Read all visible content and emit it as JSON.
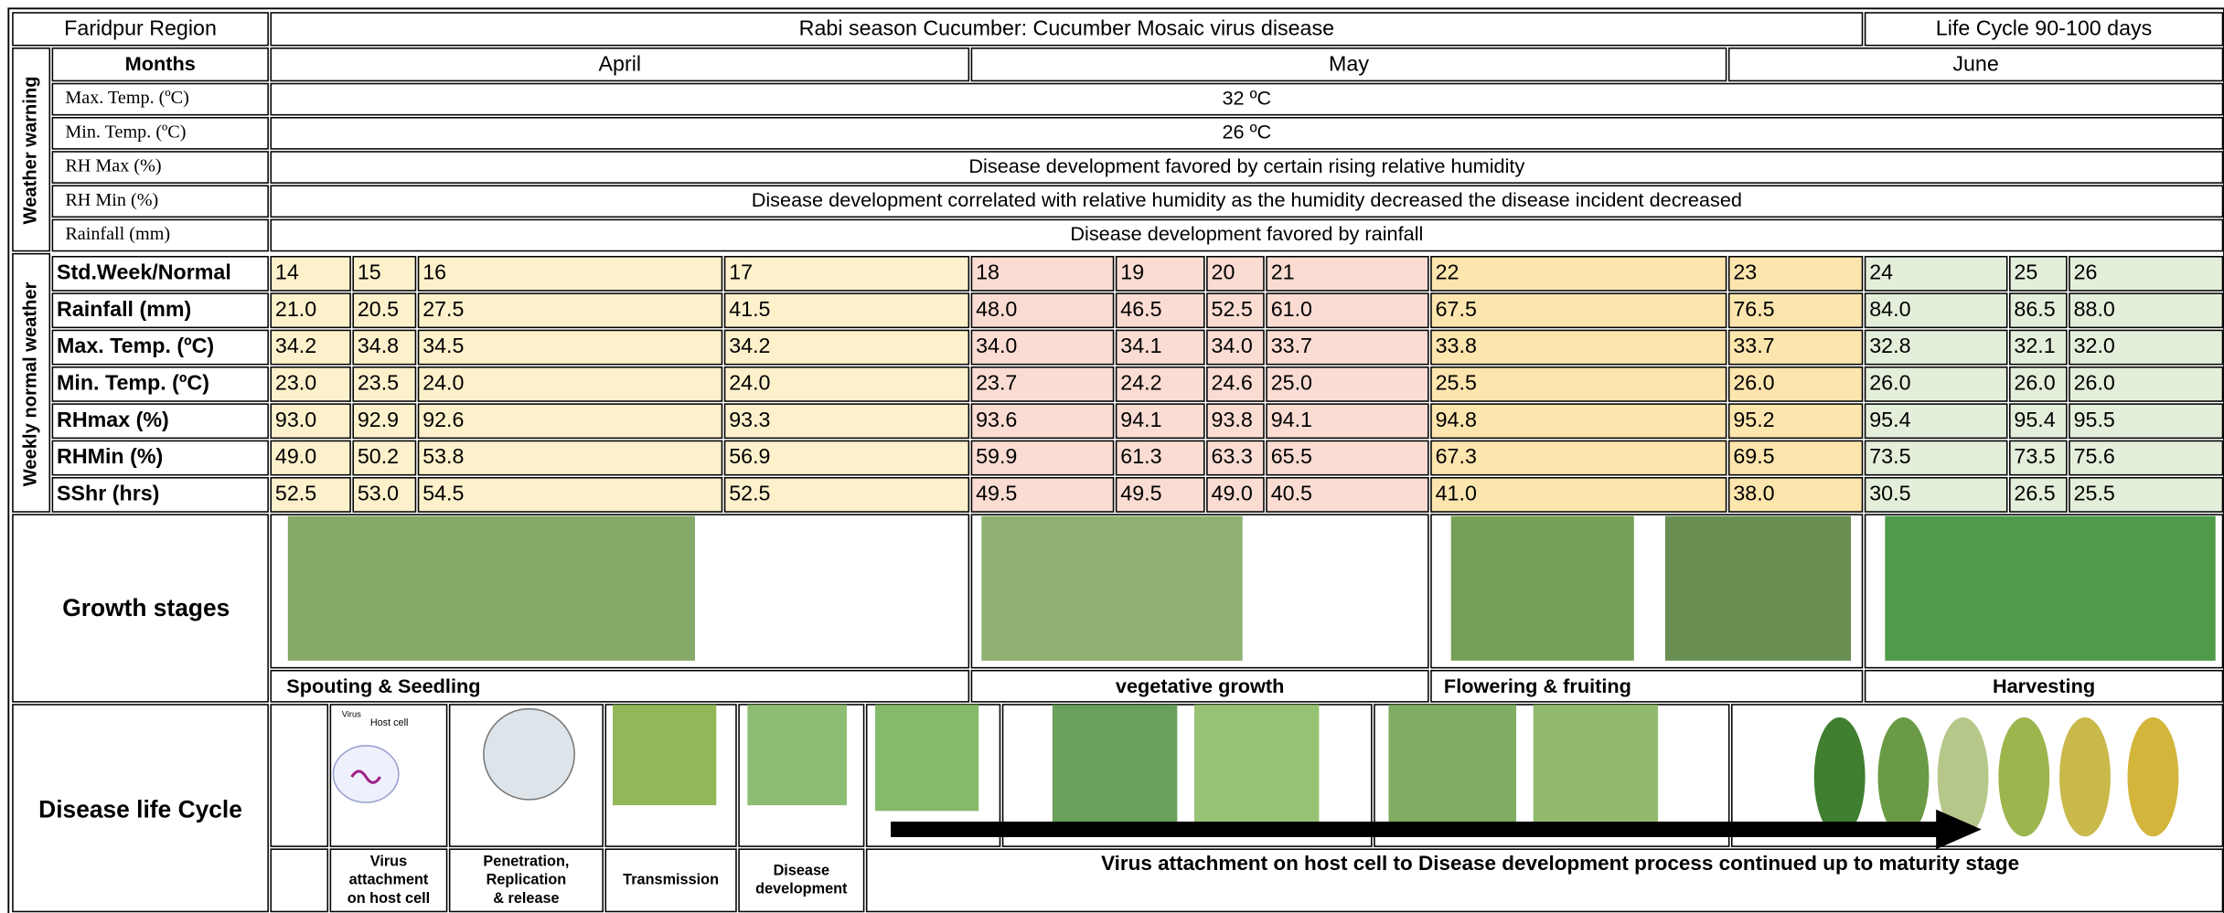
{
  "header": {
    "region": "Faridpur Region",
    "title": "Rabi season Cucumber: Cucumber Mosaic virus disease",
    "life_cycle": "Life Cycle 90-100 days"
  },
  "weather_warning": {
    "side_label": "Weather warning",
    "months_label": "Months",
    "months": [
      "April",
      "May",
      "June"
    ],
    "rows": [
      {
        "label": "Max. Temp. (ºC)",
        "text": "32 ºC"
      },
      {
        "label": "Min. Temp. (ºC)",
        "text": "26 ºC"
      },
      {
        "label": "RH Max (%)",
        "text": "Disease development favored by certain rising relative humidity"
      },
      {
        "label": "RH Min (%)",
        "text": "Disease development correlated with relative humidity as the humidity decreased the disease incident decreased"
      },
      {
        "label": "Rainfall (mm)",
        "text": "Disease development favored by rainfall"
      }
    ]
  },
  "weekly_normal": {
    "side_label": "Weekly normal weather",
    "header_label": "Std.Week/Normal",
    "weeks": [
      "14",
      "15",
      "16",
      "17",
      "18",
      "19",
      "20",
      "21",
      "22",
      "23",
      "24",
      "25",
      "26"
    ],
    "rows": [
      {
        "label": "Rainfall (mm)",
        "values": [
          "21.0",
          "20.5",
          "27.5",
          "41.5",
          "48.0",
          "46.5",
          "52.5",
          "61.0",
          "67.5",
          "76.5",
          "84.0",
          "86.5",
          "88.0"
        ]
      },
      {
        "label": "Max. Temp. (ºC)",
        "values": [
          "34.2",
          "34.8",
          "34.5",
          "34.2",
          "34.0",
          "34.1",
          "34.0",
          "33.7",
          "33.8",
          "33.7",
          "32.8",
          "32.1",
          "32.0"
        ]
      },
      {
        "label": "Min. Temp. (ºC)",
        "values": [
          "23.0",
          "23.5",
          "24.0",
          "24.0",
          "23.7",
          "24.2",
          "24.6",
          "25.0",
          "25.5",
          "26.0",
          "26.0",
          "26.0",
          "26.0"
        ]
      },
      {
        "label": "RHmax (%)",
        "values": [
          "93.0",
          "92.9",
          "92.6",
          "93.3",
          "93.6",
          "94.1",
          "93.8",
          "94.1",
          "94.8",
          "95.2",
          "95.4",
          "95.4",
          "95.5"
        ]
      },
      {
        "label": "RHMin (%)",
        "values": [
          "49.0",
          "50.2",
          "53.8",
          "56.9",
          "59.9",
          "61.3",
          "63.3",
          "65.5",
          "67.3",
          "69.5",
          "73.5",
          "73.5",
          "75.6"
        ]
      },
      {
        "label": "SShr (hrs)",
        "values": [
          "52.5",
          "53.0",
          "54.5",
          "52.5",
          "49.5",
          "49.5",
          "49.0",
          "40.5",
          "41.0",
          "38.0",
          "30.5",
          "26.5",
          "25.5"
        ]
      }
    ]
  },
  "growth_stages": {
    "label": "Growth stages",
    "stages": [
      "Spouting & Seedling",
      "vegetative growth",
      "Flowering & fruiting",
      "Harvesting"
    ]
  },
  "disease_life_cycle": {
    "label": "Disease life Cycle",
    "diagram_labels": [
      "Virus",
      "Host cell"
    ],
    "steps": [
      [
        "Virus",
        "attachment",
        "on host cell"
      ],
      [
        "Penetration,",
        "Replication",
        "& release"
      ],
      [
        "Transmission"
      ],
      [
        "Disease",
        "development"
      ]
    ],
    "summary": "Virus attachment on host cell to Disease development process continued up to maturity stage"
  }
}
